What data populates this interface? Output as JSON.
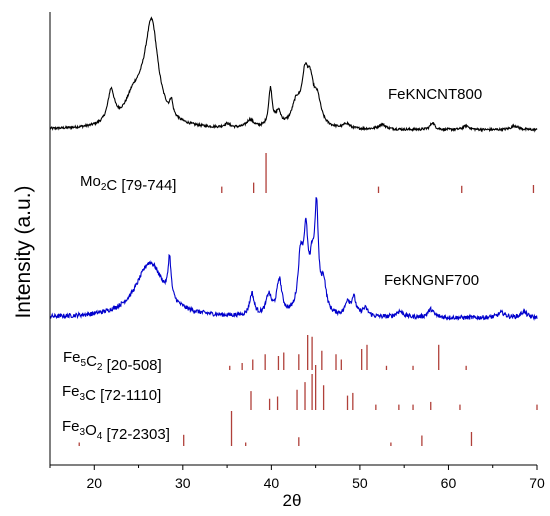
{
  "chart_data": {
    "type": "line",
    "xlabel": "2θ",
    "ylabel": "Intensity (a.u.)",
    "xlim": [
      15,
      70
    ],
    "xticks": [
      20,
      30,
      40,
      50,
      60,
      70
    ],
    "y_units": "arbitrary (stacked offsets)",
    "series": [
      {
        "name": "FeKNCNT800",
        "color": "#000000",
        "baseline": 130,
        "noise": 1.2,
        "peaks": [
          {
            "x": 21.9,
            "h": 32,
            "w": 0.45
          },
          {
            "x": 24.3,
            "h": 14,
            "w": 0.9
          },
          {
            "x": 26.5,
            "h": 86,
            "w": 0.85
          },
          {
            "x": 25.6,
            "h": 28,
            "w": 1.8
          },
          {
            "x": 28.7,
            "h": 14,
            "w": 0.2
          },
          {
            "x": 35.0,
            "h": 4,
            "w": 0.4
          },
          {
            "x": 37.6,
            "h": 8,
            "w": 0.5
          },
          {
            "x": 39.9,
            "h": 38,
            "w": 0.25
          },
          {
            "x": 40.8,
            "h": 14,
            "w": 0.35
          },
          {
            "x": 42.8,
            "h": 22,
            "w": 0.6
          },
          {
            "x": 43.8,
            "h": 44,
            "w": 0.45
          },
          {
            "x": 44.4,
            "h": 35,
            "w": 0.45
          },
          {
            "x": 45.2,
            "h": 25,
            "w": 0.5
          },
          {
            "x": 48.5,
            "h": 5,
            "w": 0.4
          },
          {
            "x": 52.5,
            "h": 5,
            "w": 0.5
          },
          {
            "x": 58.2,
            "h": 7,
            "w": 0.3
          },
          {
            "x": 62.0,
            "h": 4,
            "w": 0.4
          },
          {
            "x": 67.5,
            "h": 4,
            "w": 0.5
          }
        ]
      },
      {
        "name": "FeKNGNF700",
        "color": "#0000cc",
        "baseline": 318,
        "noise": 2.2,
        "peaks": [
          {
            "x": 26.3,
            "h": 55,
            "w": 1.9
          },
          {
            "x": 28.5,
            "h": 40,
            "w": 0.2
          },
          {
            "x": 37.8,
            "h": 22,
            "w": 0.3
          },
          {
            "x": 39.7,
            "h": 20,
            "w": 0.35
          },
          {
            "x": 40.9,
            "h": 35,
            "w": 0.35
          },
          {
            "x": 43.3,
            "h": 55,
            "w": 0.35
          },
          {
            "x": 43.9,
            "h": 72,
            "w": 0.3
          },
          {
            "x": 44.6,
            "h": 40,
            "w": 0.3
          },
          {
            "x": 45.1,
            "h": 98,
            "w": 0.25
          },
          {
            "x": 45.9,
            "h": 30,
            "w": 0.35
          },
          {
            "x": 48.6,
            "h": 14,
            "w": 0.3
          },
          {
            "x": 49.3,
            "h": 18,
            "w": 0.3
          },
          {
            "x": 50.6,
            "h": 8,
            "w": 0.4
          },
          {
            "x": 54.5,
            "h": 6,
            "w": 0.5
          },
          {
            "x": 58.0,
            "h": 8,
            "w": 0.4
          },
          {
            "x": 66.0,
            "h": 5,
            "w": 0.5
          },
          {
            "x": 68.5,
            "h": 6,
            "w": 0.4
          }
        ]
      }
    ],
    "reference_patterns": [
      {
        "label_main": "Mo",
        "label_sub": "2",
        "label_rest": "C [79-744]",
        "color": "#b0403a",
        "baseline": 193,
        "peaks": [
          [
            34.4,
            0.16
          ],
          [
            38.0,
            0.26
          ],
          [
            39.4,
            1.0
          ],
          [
            52.1,
            0.16
          ],
          [
            61.5,
            0.18
          ],
          [
            69.6,
            0.2
          ]
        ]
      },
      {
        "label_main": "Fe",
        "label_sub": "5",
        "label_rest": "C",
        "label_sub2": "2",
        "label_tail": " [20-508]",
        "color": "#b0403a",
        "baseline": 370,
        "peaks": [
          [
            35.3,
            0.12
          ],
          [
            36.7,
            0.2
          ],
          [
            37.9,
            0.3
          ],
          [
            39.3,
            0.45
          ],
          [
            40.8,
            0.4
          ],
          [
            41.4,
            0.5
          ],
          [
            43.1,
            0.45
          ],
          [
            44.1,
            1.0
          ],
          [
            44.6,
            0.95
          ],
          [
            45.7,
            0.55
          ],
          [
            47.3,
            0.45
          ],
          [
            47.9,
            0.3
          ],
          [
            50.2,
            0.6
          ],
          [
            50.8,
            0.72
          ],
          [
            53.0,
            0.12
          ],
          [
            56.0,
            0.12
          ],
          [
            58.9,
            0.72
          ],
          [
            62.0,
            0.12
          ]
        ]
      },
      {
        "label_main": "Fe",
        "label_sub": "3",
        "label_rest": "C [72-1110]",
        "color": "#b0403a",
        "baseline": 410,
        "peaks": [
          [
            37.7,
            0.42
          ],
          [
            39.8,
            0.25
          ],
          [
            40.7,
            0.3
          ],
          [
            42.9,
            0.45
          ],
          [
            43.8,
            0.62
          ],
          [
            44.6,
            0.8
          ],
          [
            45.0,
            1.0
          ],
          [
            45.9,
            0.55
          ],
          [
            48.6,
            0.32
          ],
          [
            49.2,
            0.38
          ],
          [
            51.8,
            0.12
          ],
          [
            54.4,
            0.12
          ],
          [
            56.0,
            0.12
          ],
          [
            58.0,
            0.18
          ],
          [
            61.3,
            0.12
          ],
          [
            70.0,
            0.12
          ]
        ]
      },
      {
        "label_main": "Fe",
        "label_sub": "3",
        "label_rest": "O",
        "label_sub2": "4",
        "label_tail": " [72-2303]",
        "color": "#b0403a",
        "baseline": 446,
        "peaks": [
          [
            18.3,
            0.1
          ],
          [
            30.1,
            0.32
          ],
          [
            35.5,
            1.0
          ],
          [
            37.1,
            0.1
          ],
          [
            43.1,
            0.25
          ],
          [
            53.5,
            0.1
          ],
          [
            57.0,
            0.3
          ],
          [
            62.6,
            0.4
          ]
        ]
      }
    ]
  }
}
